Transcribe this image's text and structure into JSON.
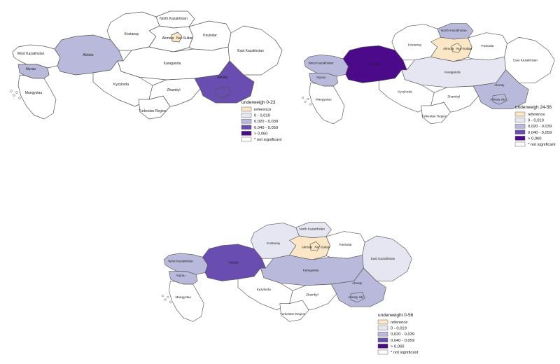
{
  "colors": {
    "reference": "#fbe7c6",
    "c1": "#e6e6f3",
    "c2": "#b9b9dc",
    "c3": "#6a4db0",
    "c4": "#4a0a8a",
    "ns": "#ffffff"
  },
  "legend_items": [
    "reference",
    "0 - 0,019",
    "0,020 - 0,039",
    "0,040 - 0,059",
    "> 0,060",
    "* not significant"
  ],
  "maps": [
    {
      "title": "underweigh 0-23",
      "regions": {
        "west_kaz": "ns",
        "atyrau": "c2",
        "mangystau": "ns",
        "aktobe": "c2",
        "kostanay": "ns",
        "north_kaz": "ns",
        "akmola": "ns",
        "nur_sultan": "reference",
        "pavlodar": "ns",
        "karaganda": "ns",
        "east_kaz": "ns",
        "kyzylorda": "ns",
        "turkestan": "ns",
        "zhambyl": "ns",
        "almaty": "c3",
        "almaty_city": "c3"
      },
      "labels": {
        "west_kaz": "West Kazakhstan",
        "atyrau": "Atyrau",
        "mangystau": "Mangystau",
        "aktobe": "Aktobe",
        "kostanay": "Kostanay",
        "north_kaz": "North Kazakhstan",
        "akmola": "Akmola",
        "nur_sultan": "Nur-Sultan",
        "pavlodar": "Pavlodar",
        "karaganda": "Karaganda",
        "east_kaz": "East Kazakhstan",
        "kyzylorda": "Kyzylorda",
        "turkestan": "Turkestan Region",
        "zhambyl": "Zhambyl",
        "almaty": "Almaty",
        "almaty_city": ""
      }
    },
    {
      "title": "underweigh 24-56",
      "regions": {
        "west_kaz": "c2",
        "atyrau": "c2",
        "mangystau": "ns",
        "aktobe": "c4",
        "kostanay": "ns",
        "north_kaz": "c2",
        "akmola": "reference",
        "nur_sultan": "reference",
        "pavlodar": "ns",
        "karaganda": "c1",
        "east_kaz": "ns",
        "kyzylorda": "ns",
        "turkestan": "ns",
        "zhambyl": "ns",
        "almaty": "c2",
        "almaty_city": "c2"
      },
      "labels": {
        "west_kaz": "West Kazakhstan",
        "atyrau": "Atyrau",
        "mangystau": "Mangystau",
        "aktobe": "Aktobe",
        "kostanay": "Kostanay",
        "north_kaz": "North Kazakhstan",
        "akmola": "Akmola",
        "nur_sultan": "Nur-Sultan",
        "pavlodar": "Pavlodar",
        "karaganda": "Karaganda",
        "east_kaz": "East Kazakhstan",
        "kyzylorda": "Kyzylorda",
        "turkestan": "Turkestan Region",
        "zhambyl": "Zhambyl",
        "almaty": "Almaty",
        "almaty_city": "Almaty city"
      }
    },
    {
      "title": "underweight 0-56",
      "regions": {
        "west_kaz": "c2",
        "atyrau": "c2",
        "mangystau": "ns",
        "aktobe": "c3",
        "kostanay": "c1",
        "north_kaz": "c1",
        "akmola": "reference",
        "nur_sultan": "reference",
        "pavlodar": "ns",
        "karaganda": "c2",
        "east_kaz": "c1",
        "kyzylorda": "ns",
        "turkestan": "ns",
        "zhambyl": "ns",
        "almaty": "c2",
        "almaty_city": "c2"
      },
      "labels": {
        "west_kaz": "West Kazakhstan",
        "atyrau": "Atyrau",
        "mangystau": "Mangystau",
        "aktobe": "Aktobe",
        "kostanay": "Kostanay",
        "north_kaz": "North Kazakhstan",
        "akmola": "Akmola",
        "nur_sultan": "Nur-Sultan",
        "pavlodar": "Pavlodar",
        "karaganda": "Karaganda",
        "east_kaz": "East Kazakhstan",
        "kyzylorda": "Kyzylorda",
        "turkestan": "Turkestan Region",
        "zhambyl": "Zhambyl",
        "almaty": "Almaty",
        "almaty_city": "Almaty city"
      }
    }
  ]
}
